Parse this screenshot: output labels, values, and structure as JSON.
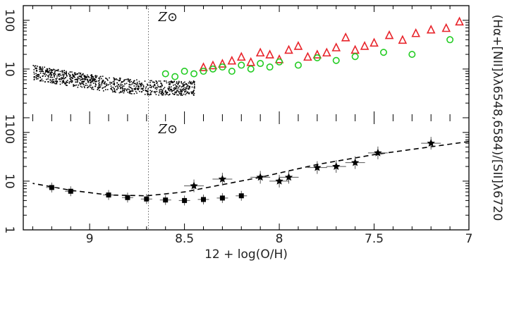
{
  "chart_data": [
    {
      "type": "scatter",
      "panel": "top",
      "orientation": "rotated-90",
      "xlabel": "12 + log(O/H)",
      "ylabel": "(Hα+[NII]λλ6548,6584)/[SII]λ6720",
      "xlim": [
        7.0,
        9.35
      ],
      "ylim": [
        1,
        200
      ],
      "yscale": "log",
      "reference_line": {
        "x": 8.69,
        "label": "Z⊙",
        "style": "dotted"
      },
      "series": [
        {
          "marker": "dots",
          "color": "#000000",
          "x_range": [
            8.45,
            9.3
          ],
          "y_range": [
            3,
            15
          ]
        },
        {
          "marker": "triangle",
          "color": "#e8242b",
          "x": [
            7.05,
            7.12,
            7.2,
            7.28,
            7.35,
            7.42,
            7.5,
            7.55,
            7.6,
            7.65,
            7.7,
            7.75,
            7.8,
            7.85,
            7.9,
            7.95,
            8.0,
            8.05,
            8.1,
            8.15,
            8.2,
            8.25,
            8.3,
            8.35,
            8.4
          ],
          "y": [
            95,
            70,
            65,
            55,
            40,
            50,
            35,
            30,
            25,
            45,
            28,
            22,
            20,
            18,
            30,
            25,
            16,
            20,
            22,
            14,
            18,
            15,
            13,
            12,
            11
          ]
        },
        {
          "marker": "circle",
          "color": "#22cc22",
          "x": [
            7.1,
            7.3,
            7.45,
            7.6,
            7.7,
            7.8,
            7.9,
            8.0,
            8.05,
            8.1,
            8.15,
            8.2,
            8.25,
            8.3,
            8.35,
            8.4,
            8.45,
            8.5,
            8.55,
            8.6
          ],
          "y": [
            40,
            20,
            22,
            18,
            15,
            17,
            12,
            14,
            11,
            13,
            10,
            12,
            9,
            11,
            10,
            9,
            8,
            9,
            7,
            8
          ]
        }
      ],
      "tick_labels_x": [],
      "tick_labels_y": [
        "1",
        "10",
        "100"
      ]
    },
    {
      "type": "line",
      "panel": "bottom",
      "orientation": "rotated-90",
      "xlabel": "12 + log(O/H)",
      "ylabel": "",
      "xlim": [
        7.0,
        9.35
      ],
      "ylim": [
        1,
        200
      ],
      "yscale": "log",
      "reference_line": {
        "x": 8.69,
        "label": "Z⊙",
        "style": "dotted"
      },
      "series": [
        {
          "marker": "star",
          "color": "#000000",
          "x": [
            7.2,
            7.48,
            7.6,
            7.7,
            7.8,
            7.95,
            8.0,
            8.1,
            8.3,
            8.45
          ],
          "y": [
            60,
            38,
            24,
            20,
            19,
            12,
            10,
            12,
            11,
            8
          ]
        },
        {
          "marker": "square",
          "color": "#000000",
          "x": [
            8.2,
            8.3,
            8.4,
            8.5,
            8.6,
            8.7,
            8.8,
            8.9,
            9.1,
            9.2
          ],
          "y": [
            5.0,
            4.5,
            4.2,
            4.0,
            4.1,
            4.3,
            4.6,
            5.2,
            6.2,
            7.4
          ]
        },
        {
          "marker": "dashed-line",
          "color": "#000000",
          "x": [
            7.0,
            7.5,
            7.8,
            8.1,
            8.5,
            8.7,
            8.9,
            9.1,
            9.3
          ],
          "y": [
            65,
            35,
            22,
            12,
            6,
            5,
            5.2,
            6.5,
            9
          ]
        }
      ],
      "tick_labels_x": [
        "7",
        "7.5",
        "8",
        "8.5",
        "9"
      ],
      "tick_labels_y": [
        "1",
        "10",
        "100"
      ]
    }
  ],
  "labels": {
    "zsun_top": "Z⊙",
    "zsun_bottom": "Z⊙",
    "x_axis_title": "12 + log(O/H)",
    "y_axis_title": "(Hα+[NII]λλ6548,6584)/[SII]λ6720"
  }
}
